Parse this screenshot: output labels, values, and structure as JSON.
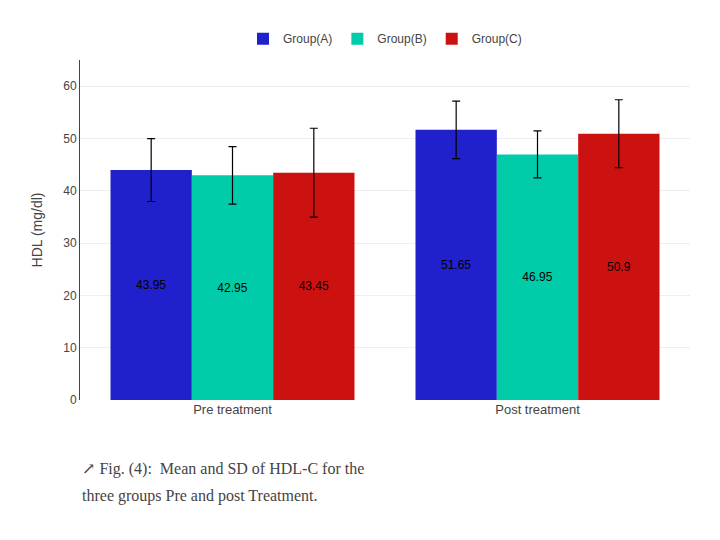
{
  "chart_data": {
    "type": "bar",
    "categories": [
      "Pre treatment",
      "Post treatment"
    ],
    "series": [
      {
        "name": "Group(A)",
        "color": "#2020cc",
        "values": [
          43.95,
          51.65
        ],
        "errors": [
          6.0,
          5.5
        ]
      },
      {
        "name": "Group(B)",
        "color": "#00ccaa",
        "values": [
          42.95,
          46.95
        ],
        "errors": [
          5.5,
          4.5
        ]
      },
      {
        "name": "Group(C)",
        "color": "#cc1111",
        "values": [
          43.45,
          50.9
        ],
        "errors": [
          8.5,
          6.5
        ]
      }
    ],
    "ylabel": "HDL (mg/dl)",
    "ylim": [
      0,
      65
    ],
    "yticks": [
      0,
      10,
      20,
      30,
      40,
      50,
      60
    ],
    "grid": true,
    "legend": "top",
    "data_labels": true,
    "annotations": [
      "↗ Fig. (4):  Mean and SD of HDL-C for the",
      "three groups Pre and post Treatment."
    ]
  }
}
